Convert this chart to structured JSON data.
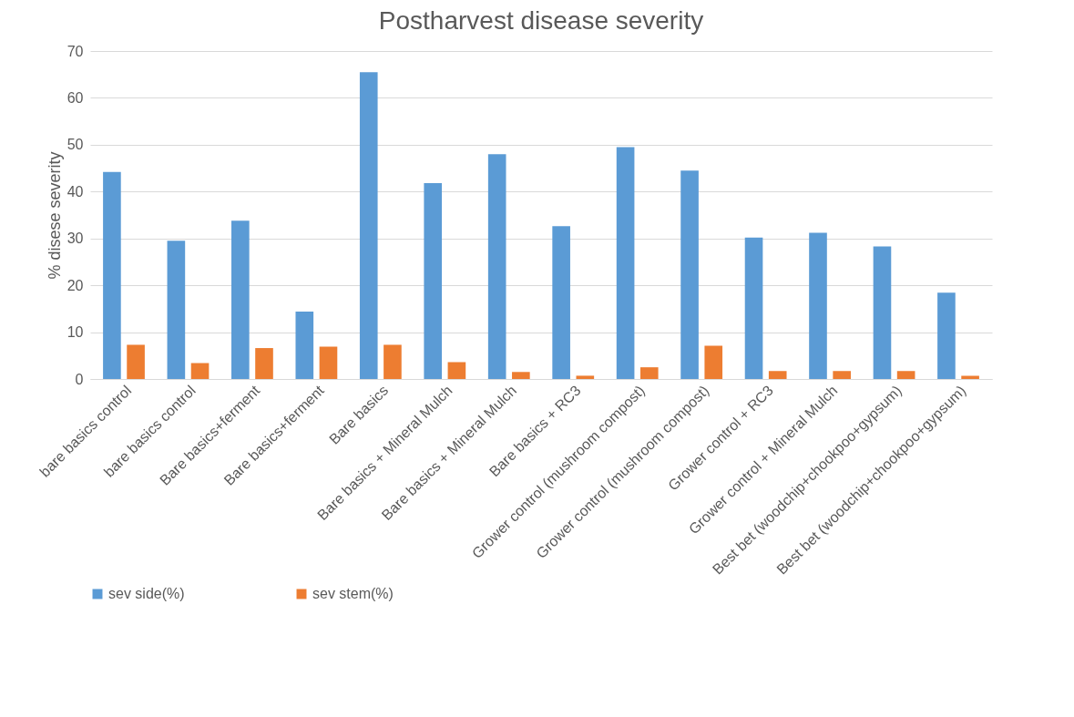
{
  "chart_data": {
    "type": "bar",
    "title": "Postharvest disease severity",
    "ylabel": "% disese severity",
    "categories": [
      "bare basics control",
      "bare basics control",
      "Bare basics+ferment",
      "Bare basics+ferment",
      "Bare basics",
      "Bare basics + Mineral Mulch",
      "Bare basics + Mineral Mulch",
      "Bare basics + RC3",
      "Grower control (mushroom compost)",
      "Grower control (mushroom compost)",
      "Grower control + RC3",
      "Grower control + Mineral Mulch",
      "Best bet (woodchip+chookpoo+gypsum)",
      "Best bet (woodchip+chookpoo+gypsum)"
    ],
    "series": [
      {
        "name": "sev side(%)",
        "color": "#5b9bd5",
        "values": [
          44.2,
          29.5,
          33.8,
          14.4,
          65.5,
          41.8,
          48,
          32.6,
          49.5,
          44.5,
          30.2,
          31.2,
          28.3,
          18.4
        ]
      },
      {
        "name": "sev stem(%)",
        "color": "#ed7d31",
        "values": [
          7.3,
          3.4,
          6.6,
          6.9,
          7.3,
          3.6,
          1.5,
          0.7,
          2.5,
          7.1,
          1.7,
          1.7,
          1.7,
          0.7
        ]
      }
    ],
    "ylim": [
      0,
      70
    ],
    "yticks": [
      0,
      10,
      20,
      30,
      40,
      50,
      60,
      70
    ],
    "grid": "y",
    "legend": "bottom"
  }
}
